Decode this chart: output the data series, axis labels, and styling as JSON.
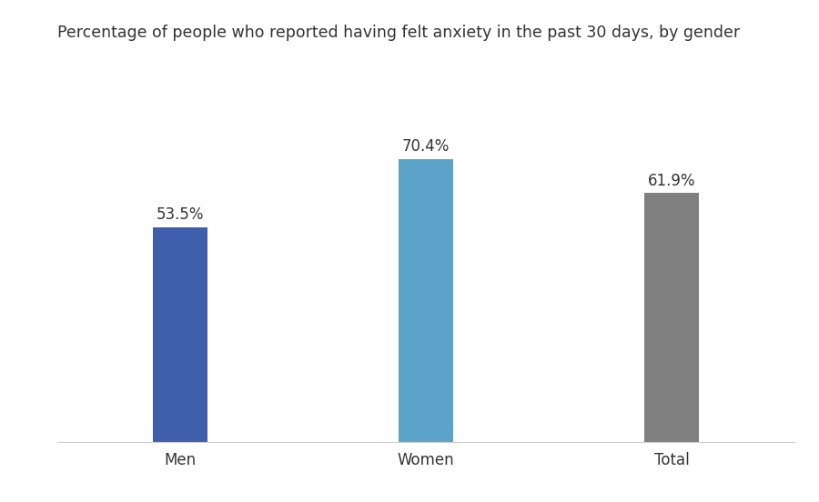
{
  "categories": [
    "Men",
    "Women",
    "Total"
  ],
  "values": [
    53.5,
    70.4,
    61.9
  ],
  "labels": [
    "53.5%",
    "70.4%",
    "61.9%"
  ],
  "bar_colors": [
    "#3F5EAC",
    "#5BA3C9",
    "#808080"
  ],
  "title": "Percentage of people who reported having felt anxiety in the past 30 days, by gender",
  "title_fontsize": 12.5,
  "label_fontsize": 12,
  "tick_fontsize": 12,
  "ylim": [
    0,
    95
  ],
  "bar_width": 0.22,
  "background_color": "#ffffff"
}
